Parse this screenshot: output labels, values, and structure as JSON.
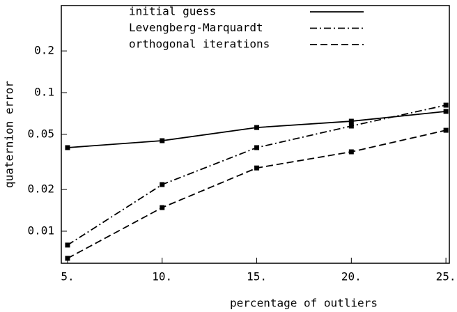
{
  "chart_data": {
    "type": "line",
    "x_label": "percentage of outliers",
    "y_label": "quaternion error",
    "x": [
      5,
      10,
      15,
      20,
      25
    ],
    "xlim": [
      4.67,
      25.18
    ],
    "xticks": [
      {
        "value": 5,
        "label": "5."
      },
      {
        "value": 10,
        "label": "10."
      },
      {
        "value": 15,
        "label": "15."
      },
      {
        "value": 20,
        "label": "20."
      },
      {
        "value": 25,
        "label": "25."
      }
    ],
    "ylim": [
      0.00587,
      0.425
    ],
    "y_scale": "log",
    "yticks": [
      0.01,
      0.02,
      0.05,
      0.1,
      0.2
    ],
    "series": [
      {
        "name": "initial guess",
        "color": "#000000",
        "dash": "solid",
        "values": [
          0.0401,
          0.045,
          0.056,
          0.0622,
          0.0732
        ]
      },
      {
        "name": "Levengberg-Marquardt",
        "color": "#000000",
        "dash": "dashdot",
        "values": [
          0.00794,
          0.0217,
          0.0401,
          0.0574,
          0.0812
        ]
      },
      {
        "name": "orthogonal iterations",
        "color": "#000000",
        "dash": "dashed",
        "values": [
          0.00637,
          0.0148,
          0.0286,
          0.0374,
          0.0535
        ]
      }
    ]
  }
}
